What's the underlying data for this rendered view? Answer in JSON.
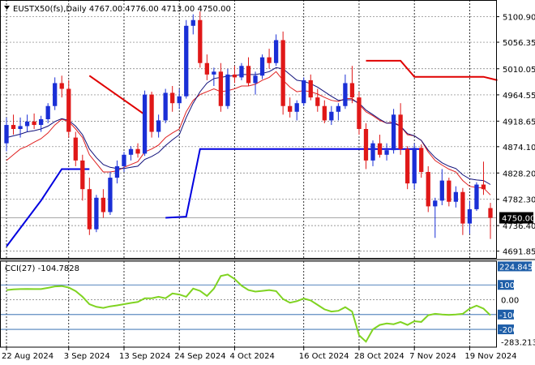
{
  "chart_data": [
    {
      "type": "candlestick",
      "symbol_line": "EUSTX50(fs),Daily  4767.00 4776.00 4713.00 4750.00",
      "header_values": {
        "open": 4767.0,
        "high": 4776.0,
        "low": 4713.0,
        "close": 4750.0
      },
      "ylim": [
        4680,
        5130
      ],
      "y_ticks": [
        {
          "value": 5100.9,
          "label": "5100.90"
        },
        {
          "value": 5056.35,
          "label": "5056.35"
        },
        {
          "value": 5010.05,
          "label": "5010.05"
        },
        {
          "value": 4964.55,
          "label": "4964.55"
        },
        {
          "value": 4918.65,
          "label": "4918.65"
        },
        {
          "value": 4874.1,
          "label": "4874.10"
        },
        {
          "value": 4828.2,
          "label": "4828.20"
        },
        {
          "value": 4782.3,
          "label": "4782.30"
        },
        {
          "value": 4736.4,
          "label": "4736.40"
        },
        {
          "value": 4691.85,
          "label": "4691.85"
        }
      ],
      "last_price": {
        "value": 4750.0,
        "label": "4750.00"
      },
      "x_labels": [
        {
          "index": 0,
          "label": "22 Aug 2024"
        },
        {
          "index": 9,
          "label": "3 Sep 2024"
        },
        {
          "index": 17,
          "label": "13 Sep 2024"
        },
        {
          "index": 25,
          "label": "24 Sep 2024"
        },
        {
          "index": 33,
          "label": "4 Oct 2024"
        },
        {
          "index": 43,
          "label": "16 Oct 2024"
        },
        {
          "index": 51,
          "label": "28 Oct 2024"
        },
        {
          "index": 59,
          "label": "7 Nov 2024"
        },
        {
          "index": 67,
          "label": "19 Nov 2024"
        }
      ],
      "candles": [
        [
          4880,
          4925,
          4866,
          4912
        ],
        [
          4912,
          4930,
          4895,
          4905
        ],
        [
          4905,
          4925,
          4890,
          4910
        ],
        [
          4910,
          4930,
          4900,
          4918
        ],
        [
          4918,
          4932,
          4905,
          4912
        ],
        [
          4912,
          4928,
          4900,
          4922
        ],
        [
          4922,
          4950,
          4915,
          4945
        ],
        [
          4945,
          4995,
          4938,
          4985
        ],
        [
          4985,
          4998,
          4960,
          4975
        ],
        [
          4975,
          4990,
          4890,
          4900
        ],
        [
          4890,
          4900,
          4840,
          4850
        ],
        [
          4850,
          4860,
          4780,
          4800
        ],
        [
          4800,
          4820,
          4720,
          4730
        ],
        [
          4730,
          4790,
          4725,
          4785
        ],
        [
          4785,
          4800,
          4750,
          4760
        ],
        [
          4760,
          4830,
          4755,
          4820
        ],
        [
          4820,
          4850,
          4810,
          4840
        ],
        [
          4840,
          4865,
          4830,
          4860
        ],
        [
          4860,
          4875,
          4850,
          4870
        ],
        [
          4870,
          4880,
          4855,
          4862
        ],
        [
          4862,
          4972,
          4858,
          4965
        ],
        [
          4965,
          4970,
          4890,
          4900
        ],
        [
          4900,
          4930,
          4890,
          4920
        ],
        [
          4920,
          4975,
          4915,
          4968
        ],
        [
          4968,
          4980,
          4935,
          4950
        ],
        [
          4950,
          4975,
          4940,
          4962
        ],
        [
          4962,
          5095,
          4958,
          5085
        ],
        [
          5085,
          5105,
          5070,
          5095
        ],
        [
          5095,
          5110,
          5012,
          5020
        ],
        [
          5020,
          5035,
          4990,
          5000
        ],
        [
          5000,
          5012,
          4980,
          5005
        ],
        [
          5005,
          5020,
          4935,
          4945
        ],
        [
          4945,
          5010,
          4940,
          5000
        ],
        [
          5000,
          5015,
          4985,
          4995
        ],
        [
          4995,
          5020,
          4990,
          5015
        ],
        [
          5015,
          5030,
          4980,
          4985
        ],
        [
          4985,
          5005,
          4965,
          4998
        ],
        [
          4998,
          5035,
          4992,
          5030
        ],
        [
          5030,
          5045,
          5010,
          5020
        ],
        [
          5020,
          5070,
          5015,
          5060
        ],
        [
          5060,
          5075,
          4930,
          4945
        ],
        [
          4945,
          4960,
          4925,
          4935
        ],
        [
          4935,
          4955,
          4920,
          4950
        ],
        [
          4950,
          4995,
          4945,
          4990
        ],
        [
          4990,
          5000,
          4955,
          4960
        ],
        [
          4960,
          4975,
          4935,
          4945
        ],
        [
          4945,
          4955,
          4915,
          4920
        ],
        [
          4920,
          4945,
          4912,
          4935
        ],
        [
          4935,
          4950,
          4920,
          4945
        ],
        [
          4945,
          5000,
          4940,
          4985
        ],
        [
          4985,
          5015,
          4950,
          4960
        ],
        [
          4960,
          4970,
          4895,
          4905
        ],
        [
          4905,
          4915,
          4835,
          4850
        ],
        [
          4850,
          4885,
          4840,
          4880
        ],
        [
          4880,
          4895,
          4855,
          4860
        ],
        [
          4860,
          4880,
          4850,
          4868
        ],
        [
          4868,
          4940,
          4862,
          4930
        ],
        [
          4930,
          4950,
          4860,
          4870
        ],
        [
          4870,
          4875,
          4800,
          4810
        ],
        [
          4810,
          4880,
          4800,
          4872
        ],
        [
          4872,
          4878,
          4820,
          4830
        ],
        [
          4830,
          4840,
          4760,
          4770
        ],
        [
          4770,
          4785,
          4715,
          4780
        ],
        [
          4780,
          4835,
          4772,
          4815
        ],
        [
          4815,
          4820,
          4770,
          4778
        ],
        [
          4778,
          4805,
          4768,
          4795
        ],
        [
          4795,
          4802,
          4720,
          4740
        ],
        [
          4740,
          4780,
          4722,
          4765
        ],
        [
          4765,
          4812,
          4762,
          4808
        ],
        [
          4808,
          4848,
          4790,
          4800
        ],
        [
          4767,
          4776,
          4713,
          4750
        ]
      ],
      "overlays": [
        {
          "kind": "ema-fast",
          "color": "#e02020",
          "values": [
            4850,
            4860,
            4870,
            4875,
            4882,
            4888,
            4898,
            4912,
            4922,
            4918,
            4905,
            4890,
            4860,
            4845,
            4830,
            4830,
            4832,
            4838,
            4843,
            4848,
            4865,
            4870,
            4877,
            4890,
            4898,
            4905,
            4935,
            4955,
            4965,
            4970,
            4975,
            4970,
            4972,
            4975,
            4980,
            4980,
            4983,
            4990,
            4995,
            5005,
            4990,
            4978,
            4970,
            4972,
            4970,
            4966,
            4960,
            4955,
            4953,
            4958,
            4958,
            4948,
            4935,
            4928,
            4920,
            4915,
            4917,
            4910,
            4895,
            4893,
            4885,
            4865,
            4850,
            4842,
            4835,
            4830,
            4815,
            4805,
            4803,
            4802,
            4790
          ]
        },
        {
          "kind": "ema-slow",
          "color": "#10107a",
          "values": [
            4890,
            4893,
            4896,
            4900,
            4902,
            4905,
            4910,
            4918,
            4923,
            4920,
            4910,
            4895,
            4870,
            4855,
            4843,
            4838,
            4836,
            4836,
            4838,
            4840,
            4852,
            4857,
            4864,
            4876,
            4886,
            4895,
            4925,
            4950,
            4970,
            4985,
            4993,
            4995,
            4997,
            4998,
            5000,
            5000,
            5000,
            5002,
            5005,
            5012,
            5010,
            5000,
            4990,
            4988,
            4984,
            4978,
            4970,
            4962,
            4955,
            4956,
            4956,
            4950,
            4938,
            4930,
            4922,
            4915,
            4915,
            4910,
            4897,
            4893,
            4885,
            4868,
            4855,
            4846,
            4840,
            4836,
            4825,
            4818,
            4816,
            4815,
            4808
          ]
        }
      ],
      "stops": [
        {
          "color": "#e00000",
          "segments": [
            [
              12,
              4998,
              20,
              4930
            ],
            [
              52,
              5024,
              57,
              5024,
              59,
              4996,
              69,
              4996,
              71,
              4990
            ]
          ]
        },
        {
          "color": "#0000e0",
          "segments": [
            [
              0,
              4700,
              5,
              4780,
              8,
              4835,
              12,
              4835
            ],
            [
              23,
              4750,
              26,
              4752,
              28,
              4870,
              60,
              4870
            ]
          ]
        }
      ]
    },
    {
      "type": "line",
      "label": "CCI(27) -104.7828",
      "ylim": [
        -320,
        260
      ],
      "y_ticks": [
        {
          "value": 224.8455,
          "label": "224.8455",
          "boxed": true
        },
        {
          "value": 100,
          "label": "100",
          "boxed": true
        },
        {
          "value": 0,
          "label": "0.00",
          "boxed": false
        },
        {
          "value": -100,
          "label": "-100",
          "boxed": true
        },
        {
          "value": -200,
          "label": "-200",
          "boxed": true
        },
        {
          "value": -283.2131,
          "label": "-283.2131",
          "boxed": false
        }
      ],
      "color": "#7fd321",
      "values": [
        65,
        70,
        72,
        73,
        72,
        72,
        80,
        90,
        92,
        82,
        58,
        20,
        -30,
        -48,
        -55,
        -45,
        -38,
        -30,
        -22,
        -15,
        10,
        10,
        20,
        10,
        42,
        35,
        20,
        75,
        60,
        25,
        75,
        160,
        170,
        140,
        95,
        65,
        55,
        60,
        65,
        58,
        5,
        -20,
        -10,
        8,
        -5,
        -35,
        -65,
        -80,
        -75,
        -50,
        -80,
        -240,
        -283,
        -200,
        -170,
        -160,
        -165,
        -150,
        -170,
        -145,
        -150,
        -105,
        -95,
        -100,
        -102,
        -100,
        -95,
        -60,
        -40,
        -60,
        -105
      ]
    }
  ]
}
